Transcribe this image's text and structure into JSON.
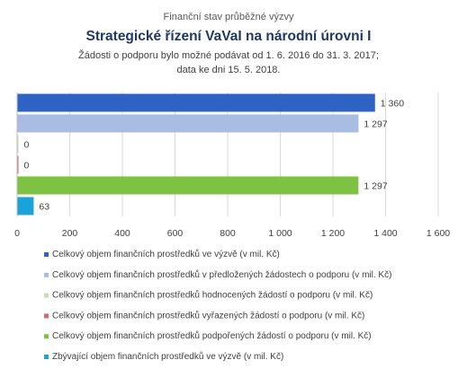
{
  "chart_data": {
    "type": "bar",
    "orientation": "horizontal",
    "supertitle": "Finanční stav průběžné výzvy",
    "title": "Strategické řízení VaVaI na národní úrovni I",
    "subtitle_lines": [
      "Žádosti o podporu bylo možné  podávat od 1. 6. 2016 do 31. 3. 2017;",
      "data ke dni 15. 5. 2018."
    ],
    "xlim": [
      0,
      1600
    ],
    "xticks": [
      0,
      200,
      400,
      600,
      800,
      1000,
      1200,
      1400,
      1600
    ],
    "xtick_labels": [
      "0",
      "200",
      "400",
      "600",
      "800",
      "1 000",
      "1 200",
      "1 400",
      "1 600"
    ],
    "grid": "vertical",
    "legend_position": "bottom",
    "series": [
      {
        "name": "Celkový objem finančních prostředků ve výzvě (v mil. Kč)",
        "value": 1360,
        "label": "1 360",
        "color": "#2e63c4"
      },
      {
        "name": "Celkový objem finančních prostředků v předložených žádostech o podporu (v mil. Kč)",
        "value": 1297,
        "label": "1 297",
        "color": "#a9bde3"
      },
      {
        "name": "Celkový objem finančních prostředků hodnocených žádostí o podporu (v mil. Kč)",
        "value": 0,
        "label": "0",
        "color": "#c5e0b4"
      },
      {
        "name": "Celkový objem finančních prostředků vyřazených žádostí o podporu (v mil. Kč)",
        "value": 0,
        "label": "0",
        "color": "#e06666"
      },
      {
        "name": "Celkový objem finančních prostředků podpořených žádostí o podporu (v mil. Kč)",
        "value": 1297,
        "label": "1 297",
        "color": "#7dc242"
      },
      {
        "name": "Zbývající objem finančních prostředků ve výzvě (v mil. Kč)",
        "value": 63,
        "label": "63",
        "color": "#19a3d6"
      }
    ]
  }
}
